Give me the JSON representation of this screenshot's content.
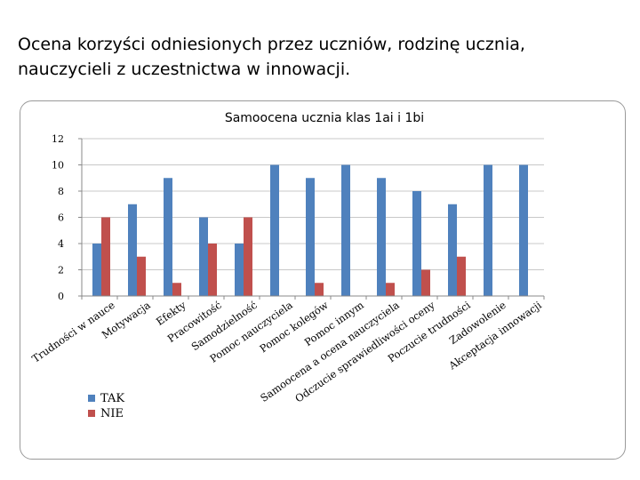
{
  "slide": {
    "title_line1": "Ocena korzyści odniesionych przez uczniów, rodzinę ucznia,",
    "title_line2": "nauczycieli z uczestnictwa w innowacji."
  },
  "chart_data": {
    "type": "bar",
    "title": "Samoocena ucznia klas 1ai i 1bi",
    "xlabel": "",
    "ylabel": "",
    "ylim": [
      0,
      12
    ],
    "yticks": [
      0,
      2,
      4,
      6,
      8,
      10,
      12
    ],
    "grid": true,
    "legend_position": "bottom-left",
    "categories": [
      "Trudności w nauce",
      "Motywacja",
      "Efekty",
      "Pracowitość",
      "Samodzielność",
      "Pomoc nauczyciela",
      "Pomoc kolegów",
      "Pomoc innym",
      "Samoocena a ocena nauczyciela",
      "Odczucie sprawiedliwości oceny",
      "Poczucie trudności",
      "Zadowolenie",
      "Akceptacja innowacji"
    ],
    "series": [
      {
        "name": "TAK",
        "color": "#4f81bd",
        "values": [
          4,
          7,
          9,
          6,
          4,
          10,
          9,
          10,
          9,
          8,
          7,
          10,
          10
        ]
      },
      {
        "name": "NIE",
        "color": "#c0504d",
        "values": [
          6,
          3,
          1,
          4,
          6,
          0,
          1,
          0,
          1,
          2,
          3,
          0,
          0
        ]
      }
    ]
  }
}
